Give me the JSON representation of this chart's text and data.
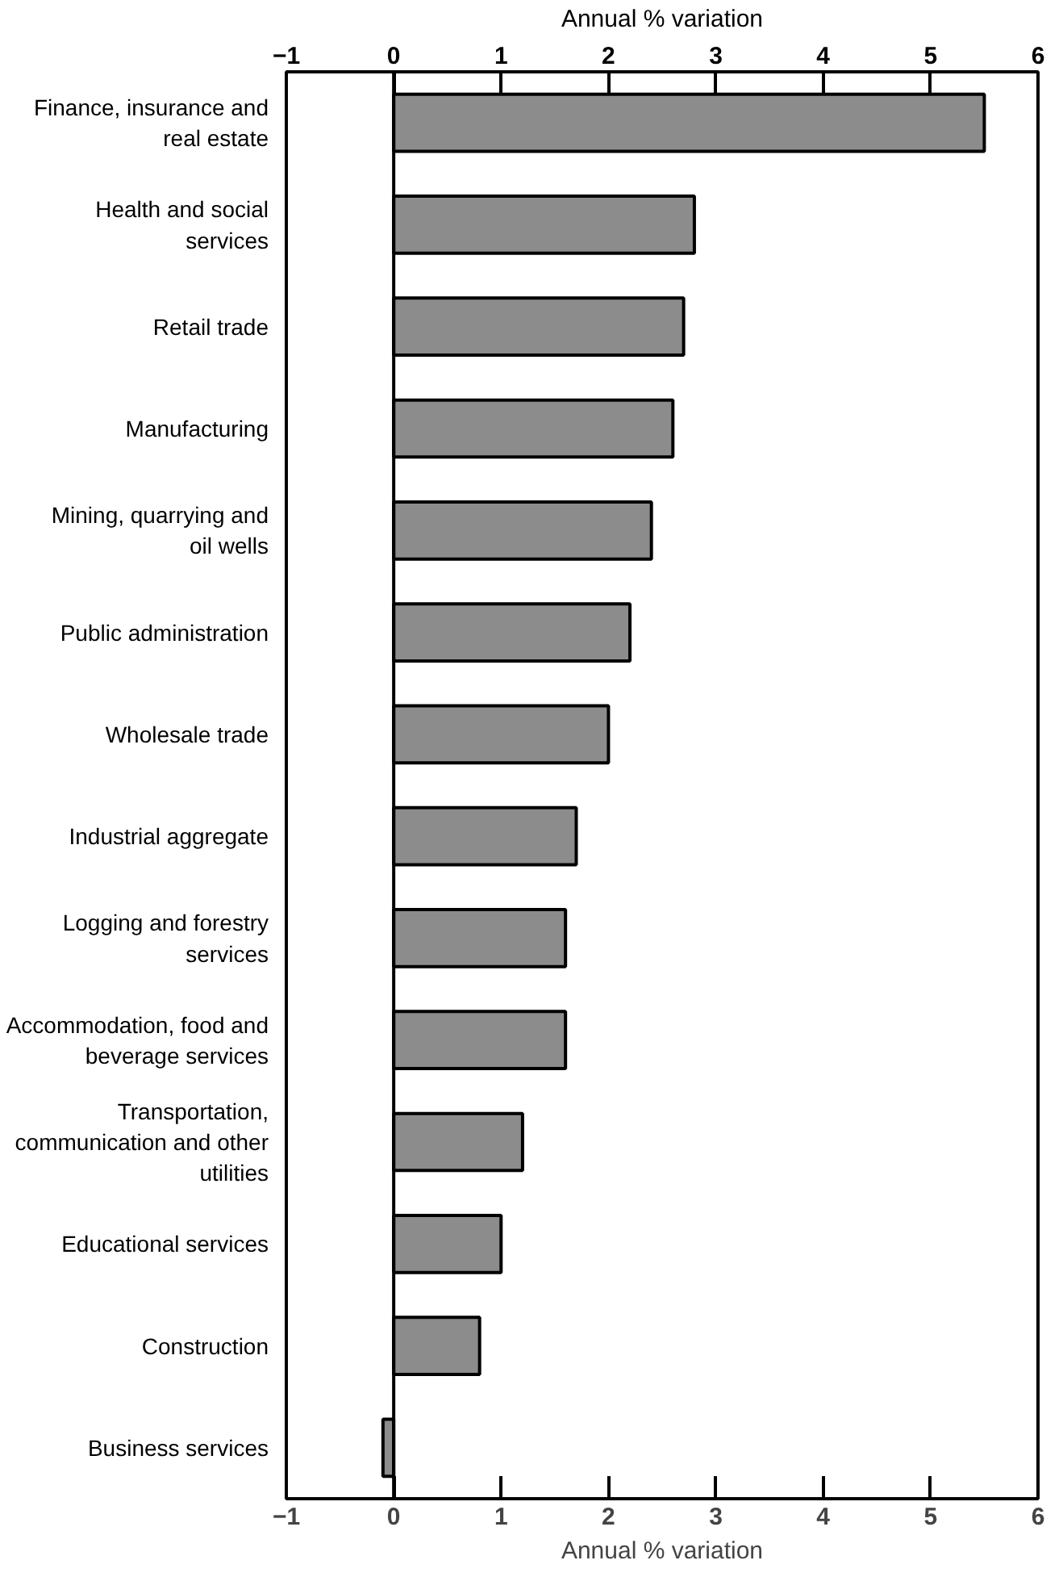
{
  "chart_data": {
    "type": "bar",
    "orientation": "horizontal",
    "xlabel": "Annual % variation",
    "x2label": "Annual % variation",
    "categories": [
      "Finance, insurance and real estate",
      "Health and social services",
      "Retail trade",
      "Manufacturing",
      "Mining, quarrying and oil wells",
      "Public administration",
      "Wholesale trade",
      "Industrial aggregate",
      "Logging and forestry services",
      "Accommodation, food and beverage services",
      "Transportation, communication and other utilities",
      "Educational services",
      "Construction",
      "Business services"
    ],
    "values": [
      5.5,
      2.8,
      2.7,
      2.6,
      2.4,
      2.2,
      2.0,
      1.7,
      1.6,
      1.6,
      1.2,
      1.0,
      0.8,
      -0.1
    ],
    "color": "#8c8c8c",
    "xlim": [
      -1,
      6
    ],
    "xticks": [
      -1,
      0,
      1,
      2,
      3,
      4,
      5,
      6
    ],
    "x2lim": [
      -1,
      6
    ],
    "x2ticks": [
      -1,
      0,
      1,
      2,
      3,
      4,
      5,
      6
    ],
    "ref_lines": [
      {
        "axis": "x",
        "value": 0,
        "color": "#000000"
      }
    ],
    "grid": false
  }
}
